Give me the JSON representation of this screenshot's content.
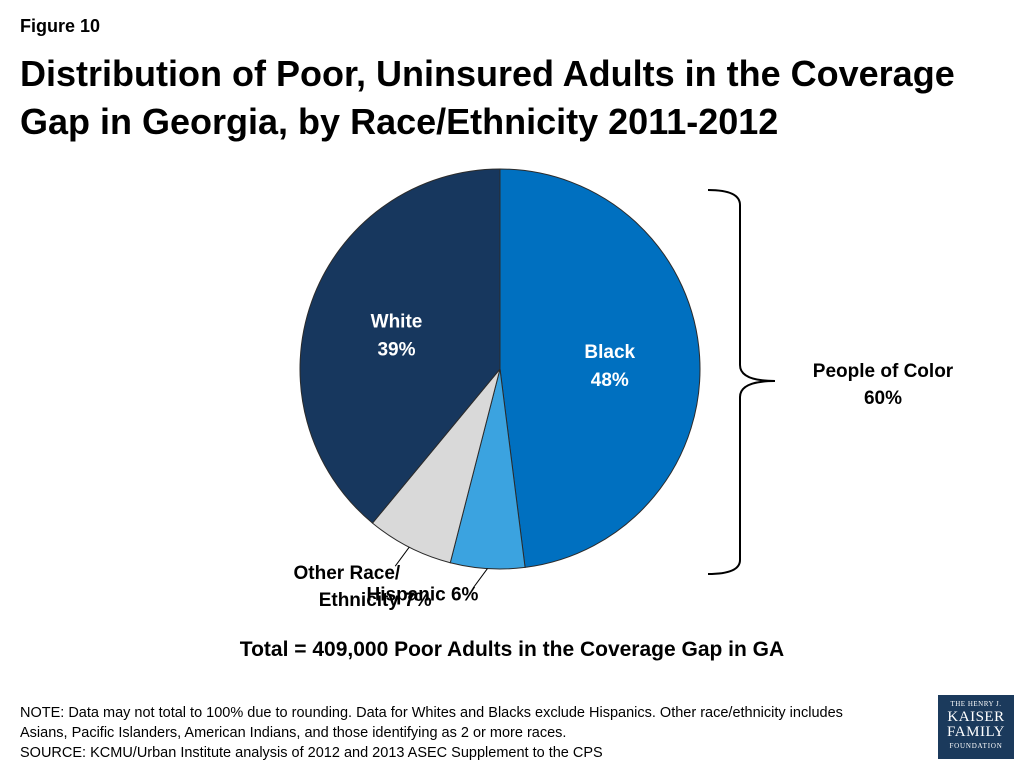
{
  "figure_label": "Figure 10",
  "title": "Distribution of Poor, Uninsured Adults in the Coverage Gap in Georgia, by Race/Ethnicity 2011-2012",
  "chart_data": {
    "type": "pie",
    "slices": [
      {
        "name": "Black",
        "value": 48,
        "label_line1": "Black",
        "label_line2": "48%",
        "color": "#0070c0",
        "label_style": "inside"
      },
      {
        "name": "Hispanic",
        "value": 6,
        "label_line1": "Hispanic 6%",
        "label_line2": "",
        "color": "#3ba3e0",
        "label_style": "outside"
      },
      {
        "name": "Other Race/Ethnicity",
        "value": 7,
        "label_line1": "Other Race/",
        "label_line2": "Ethnicity 7%",
        "color": "#d9d9d9",
        "label_style": "outside"
      },
      {
        "name": "White",
        "value": 39,
        "label_line1": "White",
        "label_line2": "39%",
        "color": "#17375e",
        "label_style": "inside"
      }
    ],
    "bracket_label_line1": "People of Color",
    "bracket_label_line2": "60%"
  },
  "total_text": "Total = 409,000 Poor Adults in the Coverage Gap in GA",
  "note_lines": [
    "NOTE: Data may not total to 100% due to rounding. Data for Whites and Blacks exclude Hispanics. Other race/ethnicity includes",
    "Asians, Pacific Islanders, American Indians, and those identifying as 2 or more races.",
    "SOURCE: KCMU/Urban Institute analysis of 2012 and 2013 ASEC Supplement to the CPS"
  ],
  "logo": {
    "line1": "THE HENRY J.",
    "line2": "KAISER",
    "line3": "FAMILY",
    "line4": "FOUNDATION"
  }
}
